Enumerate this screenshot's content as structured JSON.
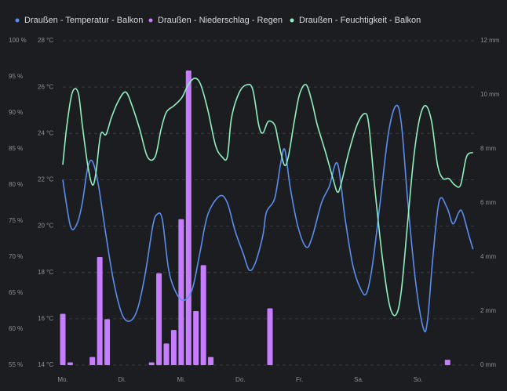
{
  "chart_data": {
    "type": "combo",
    "legend_position": "top-left",
    "grid": true,
    "background": "#1c1d21",
    "xlim": [
      0,
      7
    ],
    "xticks": [
      {
        "value": 0,
        "label": "Mo."
      },
      {
        "value": 1,
        "label": "Di."
      },
      {
        "value": 2,
        "label": "Mi."
      },
      {
        "value": 3,
        "label": "Do."
      },
      {
        "value": 4,
        "label": "Fr."
      },
      {
        "value": 5,
        "label": "Sa."
      },
      {
        "value": 6,
        "label": "So."
      }
    ],
    "ylim": [
      55,
      100
    ],
    "yticks": [
      {
        "value": 55,
        "label": "55 %"
      },
      {
        "value": 60,
        "label": "60 %"
      },
      {
        "value": 65,
        "label": "65 %"
      },
      {
        "value": 70,
        "label": "70 %"
      },
      {
        "value": 75,
        "label": "75 %"
      },
      {
        "value": 80,
        "label": "80 %"
      },
      {
        "value": 85,
        "label": "85 %"
      },
      {
        "value": 90,
        "label": "90 %"
      },
      {
        "value": 95,
        "label": "95 %"
      },
      {
        "value": 100,
        "label": "100 %"
      }
    ],
    "y3lim": [
      14,
      28
    ],
    "y3ticks": [
      {
        "value": 14,
        "label": "14 °C"
      },
      {
        "value": 16,
        "label": "16 °C"
      },
      {
        "value": 18,
        "label": "18 °C"
      },
      {
        "value": 20,
        "label": "20 °C"
      },
      {
        "value": 22,
        "label": "22 °C"
      },
      {
        "value": 24,
        "label": "24 °C"
      },
      {
        "value": 26,
        "label": "26 °C"
      },
      {
        "value": 28,
        "label": "28 °C"
      }
    ],
    "y2lim": [
      0,
      12
    ],
    "y2ticks": [
      {
        "value": 0,
        "label": "0 mm"
      },
      {
        "value": 2,
        "label": "2 mm"
      },
      {
        "value": 4,
        "label": "4 mm"
      },
      {
        "value": 6,
        "label": "6 mm"
      },
      {
        "value": 8,
        "label": "8 mm"
      },
      {
        "value": 10,
        "label": "10 mm"
      },
      {
        "value": 12,
        "label": "12 mm"
      }
    ],
    "series": [
      {
        "name": "Draußen - Temperatur - Balkon",
        "type": "line",
        "axis": "y3",
        "color": "#5b8def",
        "x": [
          0,
          0.13,
          0.24,
          0.33,
          0.42,
          0.5,
          0.6,
          0.73,
          0.86,
          1.0,
          1.13,
          1.26,
          1.39,
          1.52,
          1.59,
          1.68,
          1.79,
          1.92,
          2.05,
          2.19,
          2.32,
          2.45,
          2.65,
          2.78,
          2.91,
          3.05,
          3.15,
          3.25,
          3.38,
          3.44,
          3.58,
          3.68,
          3.75,
          3.84,
          3.97,
          4.11,
          4.21,
          4.37,
          4.5,
          4.64,
          4.77,
          4.9,
          5.03,
          5.13,
          5.23,
          5.36,
          5.5,
          5.63,
          5.72,
          5.83,
          5.96,
          6.09,
          6.16,
          6.25,
          6.36,
          6.49,
          6.59,
          6.69,
          6.75,
          6.86,
          6.93
        ],
        "values": [
          22.0,
          20.0,
          20.1,
          21.0,
          22.5,
          22.8,
          21.8,
          19.6,
          17.6,
          16.2,
          15.9,
          16.4,
          17.9,
          20.0,
          20.5,
          20.3,
          18.1,
          17.1,
          16.8,
          17.3,
          18.9,
          20.5,
          21.3,
          21.0,
          19.8,
          18.8,
          18.1,
          18.4,
          19.6,
          20.6,
          21.2,
          22.7,
          23.3,
          21.7,
          20.0,
          19.1,
          19.5,
          21.0,
          21.7,
          22.7,
          20.3,
          18.3,
          17.3,
          17.1,
          18.3,
          21.0,
          24.0,
          25.2,
          24.4,
          21.0,
          17.6,
          15.6,
          15.9,
          18.6,
          21.1,
          20.8,
          20.1,
          20.6,
          20.6,
          19.6,
          19.0
        ]
      },
      {
        "name": "Draußen - Niederschlag - Regen",
        "type": "bar",
        "axis": "y2",
        "color": "#c77dff",
        "x": [
          0,
          0.125,
          0.5,
          0.625,
          0.75,
          1.5,
          1.625,
          1.75,
          1.875,
          2,
          2.125,
          2.25,
          2.375,
          2.5,
          3.5,
          6.5
        ],
        "values": [
          1.9,
          0.1,
          0.3,
          4.0,
          1.7,
          0.1,
          3.4,
          0.8,
          1.3,
          5.4,
          10.9,
          2.0,
          3.7,
          0.3,
          2.1,
          0.2
        ]
      },
      {
        "name": "Draußen - Feuchtigkeit - Balkon",
        "type": "line",
        "axis": "y",
        "color": "#8ff0c0",
        "x": [
          0,
          0.07,
          0.16,
          0.26,
          0.33,
          0.42,
          0.5,
          0.56,
          0.64,
          0.73,
          0.82,
          0.93,
          1.06,
          1.17,
          1.3,
          1.43,
          1.56,
          1.66,
          1.75,
          1.88,
          2.01,
          2.12,
          2.23,
          2.33,
          2.45,
          2.58,
          2.69,
          2.78,
          2.85,
          2.98,
          3.11,
          3.21,
          3.31,
          3.38,
          3.47,
          3.58,
          3.64,
          3.74,
          3.81,
          3.91,
          4.0,
          4.11,
          4.21,
          4.3,
          4.44,
          4.57,
          4.64,
          4.7,
          4.83,
          4.97,
          5.1,
          5.17,
          5.27,
          5.4,
          5.52,
          5.63,
          5.72,
          5.83,
          5.93,
          6.03,
          6.13,
          6.23,
          6.33,
          6.42,
          6.52,
          6.62,
          6.72,
          6.82,
          6.93
        ],
        "values": [
          82.8,
          88.3,
          92.8,
          92.8,
          88.3,
          82.8,
          80.0,
          81.7,
          87.0,
          87.0,
          89.3,
          91.5,
          92.9,
          91.0,
          87.7,
          83.9,
          83.9,
          87.7,
          90.1,
          91.0,
          92.1,
          93.9,
          94.8,
          93.9,
          90.4,
          85.5,
          83.9,
          83.9,
          89.3,
          92.8,
          93.9,
          93.2,
          88.3,
          87.2,
          88.8,
          88.3,
          86.1,
          82.8,
          83.9,
          88.8,
          92.6,
          93.9,
          91.5,
          88.3,
          84.5,
          80.7,
          79.0,
          80.1,
          84.5,
          88.3,
          89.9,
          88.3,
          79.6,
          69.8,
          63.3,
          62.0,
          65.4,
          75.2,
          83.9,
          89.3,
          91.0,
          88.8,
          82.8,
          80.9,
          80.9,
          80.0,
          80.0,
          83.9,
          84.5
        ]
      }
    ]
  }
}
